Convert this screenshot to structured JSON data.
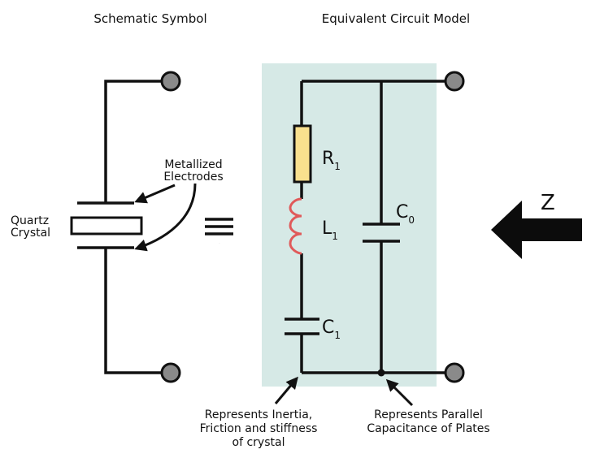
{
  "headings": {
    "left": "Schematic Symbol",
    "right": "Equivalent Circuit Model"
  },
  "symbol": {
    "electrodes_line1": "Metallized",
    "electrodes_line2": "Electrodes",
    "crystal_line1": "Quartz",
    "crystal_line2": "Crystal",
    "equivalence": "≡"
  },
  "components": {
    "r1": {
      "letter": "R",
      "sub": "1"
    },
    "l1": {
      "letter": "L",
      "sub": "1"
    },
    "c1": {
      "letter": "C",
      "sub": "1"
    },
    "c0": {
      "letter": "C",
      "sub": "0"
    }
  },
  "impedance": {
    "label": "Z"
  },
  "annotations": {
    "series_line1": "Represents Inertia,",
    "series_line2": "Friction and stiffness",
    "series_line3": "of crystal",
    "parallel_line1": "Represents Parallel",
    "parallel_line2": "Capacitance of Plates"
  },
  "colors": {
    "background_panel": "#d6e9e6",
    "wire": "#111111",
    "terminal": "#8a8a8a",
    "resistor_fill": "#f9e08e",
    "inductor": "#e05a5a"
  }
}
